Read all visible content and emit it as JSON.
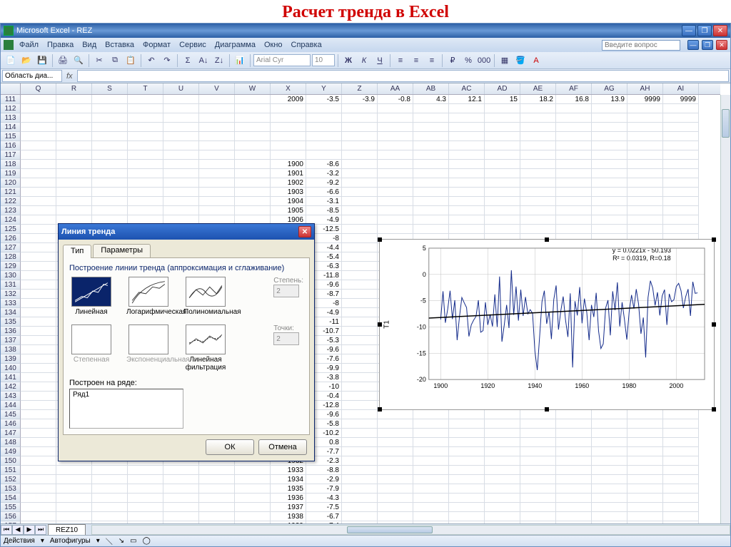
{
  "slide_title": "Расчет тренда в Excel",
  "titlebar": {
    "app": "Microsoft Excel",
    "doc": "REZ"
  },
  "menu": [
    "Файл",
    "Правка",
    "Вид",
    "Вставка",
    "Формат",
    "Сервис",
    "Диаграмма",
    "Окно",
    "Справка"
  ],
  "question_placeholder": "Введите вопрос",
  "namebox": "Область диа...",
  "font_name": "Arial Cyr",
  "font_size": "10",
  "columns": [
    "Q",
    "R",
    "S",
    "T",
    "U",
    "V",
    "W",
    "X",
    "Y",
    "Z",
    "AA",
    "AB",
    "AC",
    "AD",
    "AE",
    "AF",
    "AG",
    "AH",
    "AI"
  ],
  "row_start": 111,
  "row_end": 158,
  "row111": {
    "X": "2009",
    "Y": "-3.5",
    "Z": "-3.9",
    "AA": "-0.8",
    "AB": "4.3",
    "AC": "12.1",
    "AD": "15",
    "AE": "18.2",
    "AF": "16.8",
    "AG": "13.9",
    "AH": "9999",
    "AI": "9999"
  },
  "year_col": [
    1900,
    1901,
    1902,
    1903,
    1904,
    1905,
    1906,
    1907,
    1908,
    1909,
    1910,
    1911,
    1912,
    1913,
    1914,
    1915,
    1916,
    1917,
    1918,
    1919,
    1920,
    1921,
    1922,
    1923,
    1924,
    1925,
    1926,
    1927,
    1928,
    1929,
    1930,
    1931,
    1932,
    1933,
    1934,
    1935,
    1936,
    1937,
    1938,
    1939,
    1940
  ],
  "val_col": [
    -8.6,
    -3.2,
    -9.2,
    -6.6,
    -3.1,
    -8.5,
    -4.9,
    -12.5,
    -8,
    -4.4,
    -5.4,
    -6.3,
    -11.8,
    -9.6,
    -8.7,
    -8,
    -4.9,
    -11,
    -10.7,
    -5.3,
    -9.6,
    -7.6,
    -9.9,
    -3.8,
    -10,
    -0.4,
    -12.8,
    -9.6,
    -5.8,
    -10.2,
    0.8,
    -7.7,
    -2.3,
    -8.8,
    -2.9,
    -7.9,
    -4.3,
    -7.5,
    -6.7,
    -7.4,
    -14.6
  ],
  "sheet_tab": "REZ10",
  "status": {
    "actions": "Действия",
    "autoshapes": "Автофигуры"
  },
  "dialog": {
    "title": "Линия тренда",
    "tabs": [
      "Тип",
      "Параметры"
    ],
    "group": "Построение линии тренда (аппроксимация и сглаживание)",
    "types": [
      "Линейная",
      "Логарифмическая",
      "Полиномиальная",
      "Степенная",
      "Экспоненциальная",
      "Линейная фильтрация"
    ],
    "degree_lbl": "Степень:",
    "degree_val": "2",
    "points_lbl": "Точки:",
    "points_val": "2",
    "series_lbl": "Построен на ряде:",
    "series_item": "Ряд1",
    "ok": "ОК",
    "cancel": "Отмена"
  },
  "chart": {
    "ylabel": "T1",
    "equation": "y = 0.0221x - 50.193",
    "r2": "R² = 0.0319, R=0.18",
    "xticks": [
      1900,
      1920,
      1940,
      1960,
      1980,
      2000
    ],
    "yticks": [
      5,
      0,
      -5,
      -10,
      -15,
      -20
    ],
    "ymin": -20,
    "ymax": 5,
    "xmin": 1895,
    "xmax": 2012,
    "line_color": "#132a8a",
    "trend_color": "#000000",
    "grid_color": "#c0c0c0",
    "bg": "#ffffff",
    "series_points": [
      [
        1900,
        -8.6
      ],
      [
        1901,
        -3.2
      ],
      [
        1902,
        -9.2
      ],
      [
        1903,
        -6.6
      ],
      [
        1904,
        -3.1
      ],
      [
        1905,
        -8.5
      ],
      [
        1906,
        -4.9
      ],
      [
        1907,
        -12.5
      ],
      [
        1908,
        -8
      ],
      [
        1909,
        -4.4
      ],
      [
        1910,
        -5.4
      ],
      [
        1911,
        -6.3
      ],
      [
        1912,
        -11.8
      ],
      [
        1913,
        -9.6
      ],
      [
        1914,
        -8.7
      ],
      [
        1915,
        -8
      ],
      [
        1916,
        -4.9
      ],
      [
        1917,
        -11
      ],
      [
        1918,
        -10.7
      ],
      [
        1919,
        -5.3
      ],
      [
        1920,
        -9.6
      ],
      [
        1921,
        -7.6
      ],
      [
        1922,
        -9.9
      ],
      [
        1923,
        -3.8
      ],
      [
        1924,
        -10
      ],
      [
        1925,
        -0.4
      ],
      [
        1926,
        -12.8
      ],
      [
        1927,
        -9.6
      ],
      [
        1928,
        -5.8
      ],
      [
        1929,
        -10.2
      ],
      [
        1930,
        0.8
      ],
      [
        1931,
        -7.7
      ],
      [
        1932,
        -2.3
      ],
      [
        1933,
        -8.8
      ],
      [
        1934,
        -2.9
      ],
      [
        1935,
        -7.9
      ],
      [
        1936,
        -4.3
      ],
      [
        1937,
        -7.5
      ],
      [
        1938,
        -6.7
      ],
      [
        1939,
        -7.4
      ],
      [
        1940,
        -14.6
      ],
      [
        1941,
        -18.2
      ],
      [
        1942,
        -11.8
      ],
      [
        1943,
        -5.2
      ],
      [
        1944,
        -3.1
      ],
      [
        1945,
        -9.4
      ],
      [
        1946,
        -7.1
      ],
      [
        1947,
        -12.3
      ],
      [
        1948,
        -4.8
      ],
      [
        1949,
        -2.1
      ],
      [
        1950,
        -10.5
      ],
      [
        1951,
        -6.9
      ],
      [
        1952,
        -4.2
      ],
      [
        1953,
        -8.7
      ],
      [
        1954,
        -11.9
      ],
      [
        1955,
        -3.6
      ],
      [
        1956,
        -17.7
      ],
      [
        1957,
        -5.1
      ],
      [
        1958,
        -7.8
      ],
      [
        1959,
        -2.4
      ],
      [
        1960,
        -9.3
      ],
      [
        1961,
        -4.6
      ],
      [
        1962,
        -7.2
      ],
      [
        1963,
        -12.5
      ],
      [
        1964,
        -5.8
      ],
      [
        1965,
        -8.1
      ],
      [
        1966,
        -3.5
      ],
      [
        1967,
        -10.7
      ],
      [
        1968,
        -14.1
      ],
      [
        1969,
        -13.2
      ],
      [
        1970,
        -6.4
      ],
      [
        1971,
        -4.9
      ],
      [
        1972,
        -11.6
      ],
      [
        1973,
        -3.2
      ],
      [
        1974,
        -6.8
      ],
      [
        1975,
        -1.5
      ],
      [
        1976,
        -9.9
      ],
      [
        1977,
        -5.3
      ],
      [
        1978,
        -8.6
      ],
      [
        1979,
        -12.4
      ],
      [
        1980,
        -7.1
      ],
      [
        1981,
        -3.9
      ],
      [
        1982,
        -6.5
      ],
      [
        1983,
        -2.8
      ],
      [
        1984,
        -5.7
      ],
      [
        1985,
        -11.3
      ],
      [
        1986,
        -8.2
      ],
      [
        1987,
        -15.8
      ],
      [
        1988,
        -4.4
      ],
      [
        1989,
        -1.2
      ],
      [
        1990,
        -2.6
      ],
      [
        1991,
        -5.9
      ],
      [
        1992,
        -3.4
      ],
      [
        1993,
        -7.8
      ],
      [
        1994,
        -4.1
      ],
      [
        1995,
        -2.9
      ],
      [
        1996,
        -9.6
      ],
      [
        1997,
        -3.7
      ],
      [
        1998,
        -5.2
      ],
      [
        1999,
        -4.8
      ],
      [
        2000,
        -2.3
      ],
      [
        2001,
        -1.7
      ],
      [
        2002,
        -3.1
      ],
      [
        2003,
        -6.4
      ],
      [
        2004,
        -4.2
      ],
      [
        2005,
        -2.8
      ],
      [
        2006,
        -7.9
      ],
      [
        2007,
        -1.4
      ],
      [
        2008,
        -3.6
      ],
      [
        2009,
        -3.5
      ]
    ],
    "trend_start": [
      1895,
      -8.3
    ],
    "trend_end": [
      2012,
      -5.7
    ]
  }
}
